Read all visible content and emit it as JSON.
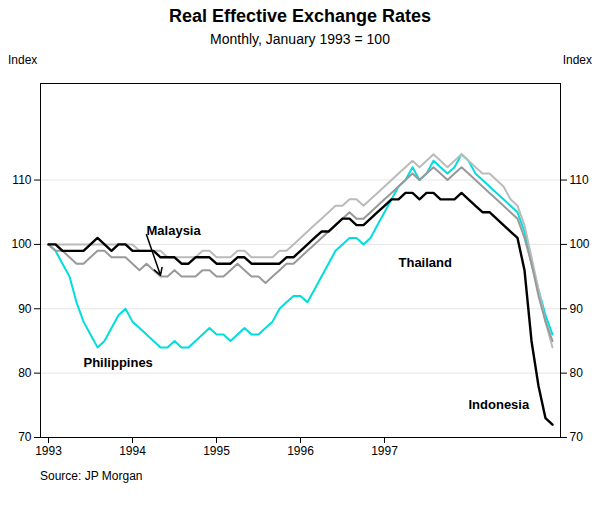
{
  "chart_data": {
    "type": "line",
    "title": "Real Effective Exchange Rates",
    "subtitle": "Monthly, January 1993 = 100",
    "ylabel": "Index",
    "y2label": "Index",
    "source": "Source:   JP Morgan",
    "categories": [
      "1993",
      null,
      null,
      null,
      null,
      null,
      null,
      null,
      null,
      null,
      null,
      null,
      "1994",
      null,
      null,
      null,
      null,
      null,
      null,
      null,
      null,
      null,
      null,
      null,
      "1995",
      null,
      null,
      null,
      null,
      null,
      null,
      null,
      null,
      null,
      null,
      null,
      "1996",
      null,
      null,
      null,
      null,
      null,
      null,
      null,
      null,
      null,
      null,
      null,
      "1997",
      null,
      null,
      null,
      null,
      null,
      null,
      null,
      null,
      null,
      null,
      null,
      null,
      null,
      null,
      null,
      null,
      null,
      null,
      null,
      null,
      null,
      null,
      null,
      null
    ],
    "ylim": [
      70,
      125
    ],
    "yticks": [
      70,
      80,
      90,
      100,
      110
    ],
    "y2lim": [
      70,
      125
    ],
    "y2ticks": [
      70,
      80,
      90,
      100,
      110
    ],
    "grid": true,
    "series": [
      {
        "name": "Philippines",
        "color": "#00dddd",
        "values": [
          100,
          99,
          97,
          95,
          91,
          88,
          86,
          84,
          85,
          87,
          89,
          90,
          88,
          87,
          86,
          85,
          84,
          84,
          85,
          84,
          84,
          85,
          86,
          87,
          86,
          86,
          85,
          86,
          87,
          86,
          86,
          87,
          88,
          90,
          91,
          92,
          92,
          91,
          93,
          95,
          97,
          99,
          100,
          101,
          101,
          100,
          101,
          103,
          105,
          107,
          109,
          110,
          112,
          110,
          111,
          113,
          112,
          111,
          112,
          114,
          113,
          111,
          110,
          109,
          108,
          107,
          106,
          105,
          102,
          97,
          93,
          89,
          86
        ]
      },
      {
        "name": "Thailand",
        "color": "#bbbbbb",
        "values": [
          100,
          100,
          100,
          100,
          100,
          100,
          100,
          100,
          100,
          100,
          100,
          100,
          100,
          99,
          99,
          99,
          99,
          98,
          98,
          98,
          98,
          98,
          99,
          99,
          98,
          98,
          98,
          99,
          99,
          98,
          98,
          98,
          98,
          99,
          99,
          100,
          101,
          102,
          103,
          104,
          105,
          106,
          106,
          107,
          107,
          106,
          107,
          108,
          109,
          110,
          111,
          112,
          113,
          112,
          113,
          114,
          113,
          112,
          113,
          114,
          113,
          112,
          111,
          111,
          110,
          109,
          107,
          106,
          103,
          98,
          93,
          88,
          84
        ]
      },
      {
        "name": "Malaysia",
        "color": "#999999",
        "values": [
          100,
          99,
          99,
          98,
          97,
          97,
          98,
          99,
          99,
          98,
          98,
          98,
          97,
          96,
          97,
          96,
          95,
          95,
          96,
          95,
          95,
          95,
          96,
          96,
          95,
          95,
          96,
          97,
          96,
          95,
          95,
          94,
          95,
          96,
          97,
          97,
          98,
          99,
          100,
          101,
          102,
          103,
          104,
          105,
          104,
          104,
          105,
          106,
          107,
          108,
          109,
          110,
          111,
          110,
          111,
          112,
          111,
          110,
          111,
          112,
          111,
          110,
          109,
          108,
          107,
          106,
          105,
          104,
          101,
          97,
          92,
          88,
          85
        ]
      },
      {
        "name": "Indonesia",
        "color": "#000000",
        "values": [
          100,
          100,
          99,
          99,
          99,
          99,
          100,
          101,
          100,
          99,
          100,
          100,
          99,
          99,
          99,
          99,
          98,
          98,
          98,
          97,
          97,
          98,
          98,
          98,
          97,
          97,
          97,
          98,
          98,
          97,
          97,
          97,
          97,
          97,
          98,
          98,
          99,
          100,
          101,
          102,
          102,
          103,
          104,
          104,
          103,
          103,
          104,
          105,
          106,
          107,
          107,
          108,
          108,
          107,
          108,
          108,
          107,
          107,
          107,
          108,
          107,
          106,
          105,
          105,
          104,
          103,
          102,
          101,
          96,
          85,
          78,
          73,
          72
        ]
      }
    ],
    "annotations": [
      {
        "text": "Malaysia",
        "x": 14,
        "y": 101.5,
        "arrow": [
          16,
          95.2
        ]
      },
      {
        "text": "Philippines",
        "x": 5,
        "y": 81
      },
      {
        "text": "Thailand",
        "x": 50,
        "y": 96.5
      },
      {
        "text": "Indonesia",
        "x": 60,
        "y": 74.5
      }
    ]
  }
}
